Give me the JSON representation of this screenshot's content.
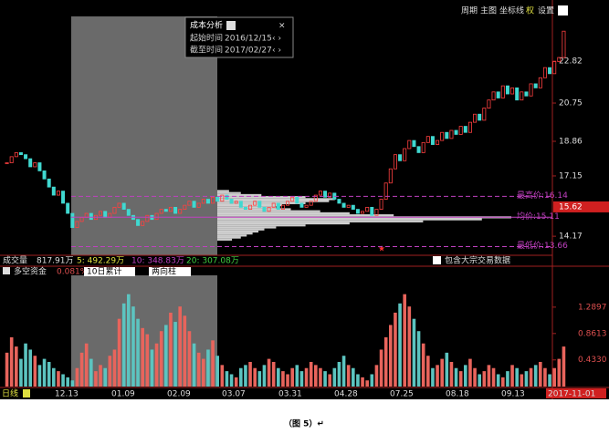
{
  "toolbar": [
    "周期",
    "主图",
    "坐标线",
    "权",
    "设置"
  ],
  "popup": {
    "title": "成本分析",
    "start_label": "起始时间",
    "start": "2016/12/15",
    "end_label": "截至时间",
    "end": "2017/02/27"
  },
  "chart_data": {
    "type": "candlestick",
    "ylim": [
      13.32,
      24.94
    ],
    "yticks": [
      22.82,
      20.75,
      18.86,
      17.15,
      14.17
    ],
    "last_price": 15.62,
    "up_color": "#ff4040",
    "down_color": "#40d8d0",
    "closes": [
      17.8,
      18.1,
      18.3,
      18.2,
      18.0,
      17.6,
      17.8,
      17.4,
      17.0,
      16.6,
      16.2,
      16.4,
      15.8,
      15.3,
      14.6,
      14.9,
      15.1,
      15.3,
      15.0,
      15.2,
      15.4,
      15.1,
      15.3,
      15.6,
      15.8,
      15.5,
      15.2,
      15.0,
      14.7,
      14.9,
      15.2,
      15.0,
      15.3,
      15.5,
      15.4,
      15.6,
      15.3,
      15.5,
      15.7,
      15.9,
      15.6,
      15.8,
      16.0,
      15.8,
      16.1,
      15.9,
      16.2,
      16.0,
      15.8,
      15.9,
      15.6,
      15.5,
      15.7,
      15.9,
      15.6,
      15.4,
      15.6,
      15.8,
      15.5,
      15.7,
      15.9,
      16.1,
      15.8,
      15.6,
      15.7,
      15.9,
      16.2,
      16.4,
      16.1,
      16.3,
      16.0,
      15.8,
      15.6,
      15.7,
      15.5,
      15.3,
      15.4,
      15.6,
      15.2,
      15.5,
      16.0,
      16.8,
      17.5,
      18.2,
      17.9,
      18.5,
      18.9,
      18.6,
      18.3,
      18.8,
      19.1,
      18.7,
      18.9,
      19.3,
      19.0,
      19.4,
      19.2,
      19.6,
      19.3,
      19.8,
      20.2,
      19.9,
      20.5,
      20.9,
      21.3,
      21.0,
      21.6,
      21.2,
      21.5,
      20.9,
      21.3,
      21.1,
      21.7,
      21.5,
      22.0,
      22.5,
      22.2,
      22.8,
      23.0,
      24.3
    ],
    "cost_distribution": {
      "color": "#e6e6e6",
      "scale_max": 100,
      "prices": [
        14.0,
        14.1,
        14.2,
        14.3,
        14.4,
        14.5,
        14.6,
        14.7,
        14.8,
        14.9,
        15.0,
        15.1,
        15.2,
        15.3,
        15.4,
        15.5,
        15.6,
        15.7,
        15.8,
        15.9,
        16.0,
        16.1,
        16.2,
        16.3,
        16.4
      ],
      "values": [
        5,
        8,
        10,
        12,
        14,
        16,
        20,
        30,
        45,
        70,
        90,
        100,
        60,
        45,
        35,
        25,
        20,
        22,
        30,
        38,
        40,
        30,
        15,
        8,
        4
      ]
    },
    "levels": [
      {
        "label": "最高价:16.14",
        "value": 16.14,
        "color": "#c040c0"
      },
      {
        "label": "均价:15.11",
        "value": 15.11,
        "color": "#c040c0"
      },
      {
        "label": "最低价:13.66",
        "value": 13.66,
        "color": "#c040c0"
      }
    ]
  },
  "volume_header": {
    "name": "成交量",
    "total": "817.91万",
    "ma5": "5: 492.29万",
    "ma10": "10: 348.83万",
    "ma20": "20: 307.08万",
    "checkbox": "包含大宗交易数据"
  },
  "fund_chart": {
    "type": "bar",
    "name": "多空资金",
    "pct": "0.081%",
    "select1": "10日累计",
    "select2": "两向柱",
    "ylim": [
      0,
      1.806
    ],
    "yticks": [
      {
        "value": 1.2897,
        "label": "1.2897"
      },
      {
        "value": 0.8613,
        "label": "0.8613"
      },
      {
        "value": 0.433,
        "label": "0.4330"
      }
    ],
    "up_color": "#e8645c",
    "down_color": "#5cc4c0",
    "values": [
      0.55,
      0.8,
      0.65,
      0.45,
      0.7,
      0.6,
      0.5,
      0.35,
      0.45,
      0.4,
      0.3,
      0.25,
      0.2,
      0.15,
      0.1,
      0.3,
      0.55,
      0.7,
      0.45,
      0.25,
      0.35,
      0.3,
      0.5,
      0.6,
      1.1,
      1.35,
      1.5,
      1.3,
      1.1,
      0.95,
      0.85,
      0.6,
      0.7,
      0.9,
      1.0,
      1.2,
      1.05,
      1.3,
      1.15,
      0.9,
      0.7,
      0.55,
      0.45,
      0.6,
      0.75,
      0.5,
      0.35,
      0.25,
      0.2,
      0.15,
      0.3,
      0.35,
      0.4,
      0.3,
      0.25,
      0.35,
      0.45,
      0.4,
      0.3,
      0.25,
      0.2,
      0.3,
      0.35,
      0.25,
      0.3,
      0.4,
      0.35,
      0.3,
      0.25,
      0.2,
      0.3,
      0.4,
      0.5,
      0.35,
      0.3,
      0.2,
      0.15,
      0.1,
      0.2,
      0.35,
      0.6,
      0.8,
      1.0,
      1.2,
      1.35,
      1.5,
      1.3,
      1.1,
      0.9,
      0.7,
      0.5,
      0.3,
      0.35,
      0.45,
      0.55,
      0.4,
      0.3,
      0.25,
      0.35,
      0.45,
      0.3,
      0.2,
      0.25,
      0.35,
      0.3,
      0.2,
      0.15,
      0.25,
      0.35,
      0.3,
      0.2,
      0.25,
      0.3,
      0.35,
      0.4,
      0.3,
      0.2,
      0.3,
      0.45,
      0.65
    ]
  },
  "x_labels": [
    "日线",
    "12.13",
    "01.09",
    "02.09",
    "03.07",
    "03.31",
    "04.28",
    "07.25",
    "08.18",
    "09.13",
    "2017-11-01"
  ],
  "caption": "（图 5）↵"
}
